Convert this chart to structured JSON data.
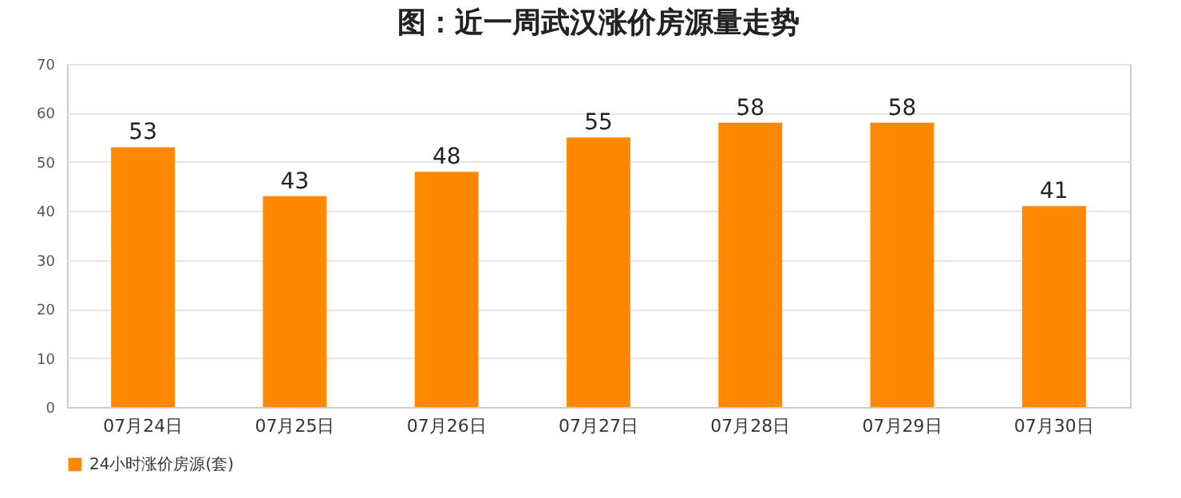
{
  "chart_data": {
    "type": "bar",
    "title": "图：近一周武汉涨价房源量走势",
    "categories": [
      "07月24日",
      "07月25日",
      "07月26日",
      "07月27日",
      "07月28日",
      "07月29日",
      "07月30日"
    ],
    "series": [
      {
        "name": "24小时涨价房源(套)",
        "color": "#ff8800",
        "values": [
          53,
          43,
          48,
          55,
          58,
          58,
          41
        ]
      }
    ],
    "ylim": [
      0,
      70
    ],
    "yticks": [
      0,
      10,
      20,
      30,
      40,
      50,
      60,
      70
    ],
    "grid": "y",
    "data_labels": true,
    "legend": "bottom"
  }
}
